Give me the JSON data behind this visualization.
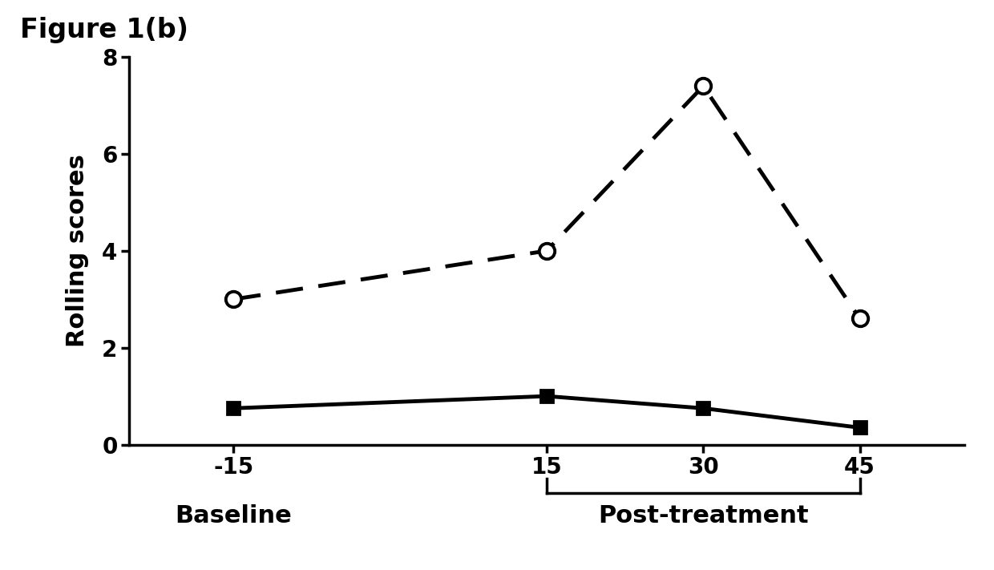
{
  "title": "Figure 1(b)",
  "ylabel": "Rolling scores",
  "x_values": [
    -15,
    15,
    30,
    45
  ],
  "dashed_line": [
    3.0,
    4.0,
    7.4,
    2.6
  ],
  "solid_line": [
    0.75,
    1.0,
    0.75,
    0.35
  ],
  "ylim": [
    0,
    8
  ],
  "yticks": [
    0,
    2,
    4,
    6,
    8
  ],
  "xticks": [
    -15,
    15,
    30,
    45
  ],
  "xticklabels": [
    "-15",
    "15",
    "30",
    "45"
  ],
  "baseline_label": "Baseline",
  "post_treatment_label": "Post-treatment",
  "line_color": "#000000",
  "background_color": "#ffffff",
  "title_fontsize": 24,
  "axis_fontsize": 22,
  "tick_fontsize": 20,
  "label_fontsize": 22,
  "linewidth": 3.5,
  "marker_size_circle": 14,
  "marker_size_square": 11
}
